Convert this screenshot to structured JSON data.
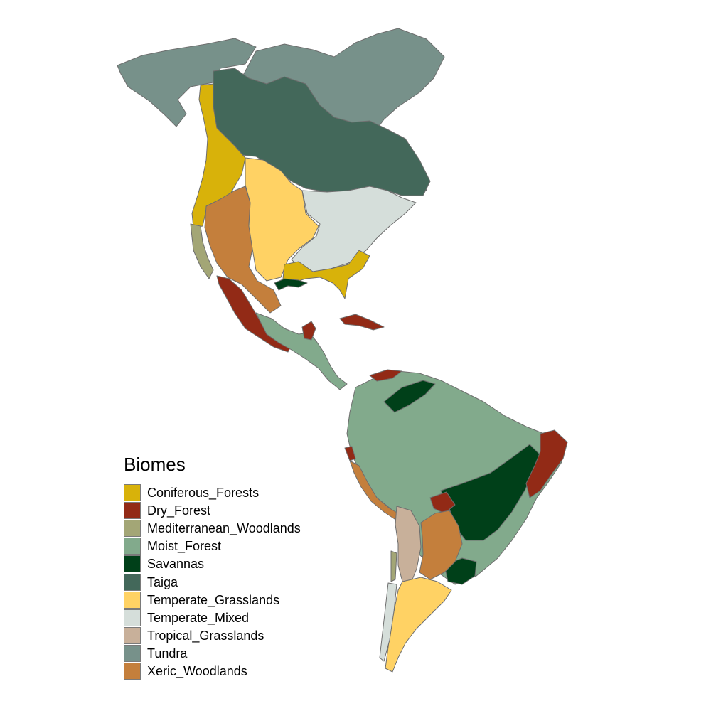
{
  "legend": {
    "title": "Biomes",
    "items": [
      {
        "key": "coniferous",
        "label": "Coniferous_Forests",
        "color": "#D8B20A"
      },
      {
        "key": "dry",
        "label": "Dry_Forest",
        "color": "#922A16"
      },
      {
        "key": "mediterranean",
        "label": "Mediterranean_Woodlands",
        "color": "#A3A676"
      },
      {
        "key": "moist",
        "label": "Moist_Forest",
        "color": "#82AA8C"
      },
      {
        "key": "savannas",
        "label": "Savannas",
        "color": "#004019"
      },
      {
        "key": "taiga",
        "label": "Taiga",
        "color": "#43685A"
      },
      {
        "key": "tempgrass",
        "label": "Temperate_Grasslands",
        "color": "#FFD264"
      },
      {
        "key": "tempmixed",
        "label": "Temperate_Mixed",
        "color": "#D5DEDA"
      },
      {
        "key": "tropgrass",
        "label": "Tropical_Grasslands",
        "color": "#C8B09A"
      },
      {
        "key": "tundra",
        "label": "Tundra",
        "color": "#77918A"
      },
      {
        "key": "xeric",
        "label": "Xeric_Woodlands",
        "color": "#C47F3C"
      }
    ]
  }
}
